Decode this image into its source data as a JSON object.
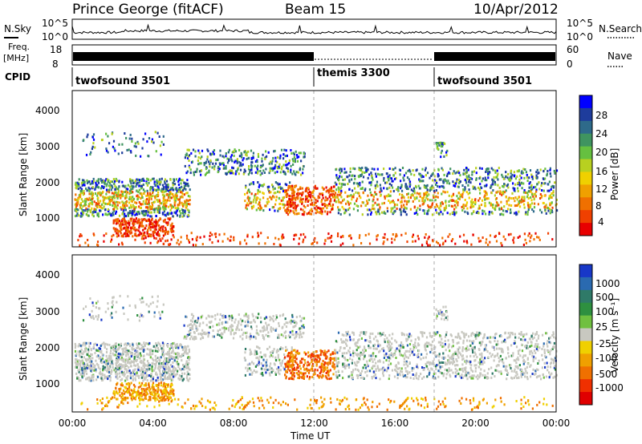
{
  "header": {
    "station": "Prince George (fitACF)",
    "beam": "Beam 15",
    "date": "10/Apr/2012"
  },
  "left_labels": {
    "nsky": "N.Sky",
    "freq_line1": "Freq.",
    "freq_line2": "[MHz]",
    "cpid": "CPID"
  },
  "right_labels": {
    "nsearch": "N.Search",
    "nave": "Nave"
  },
  "small_panel_ticks": {
    "nsky_left": [
      "10^5",
      "10^0"
    ],
    "nsky_right": [
      "10^5",
      "10^0"
    ],
    "freq_left": [
      "18",
      "8"
    ],
    "nave_right": [
      "60",
      "0"
    ]
  },
  "cpid_segments": [
    {
      "label": "twofsound 3501",
      "start_h": 0,
      "end_h": 12
    },
    {
      "label": "themis 3300",
      "start_h": 12,
      "end_h": 18
    },
    {
      "label": "twofsound 3501",
      "start_h": 18,
      "end_h": 24
    }
  ],
  "chart_data": [
    {
      "type": "heatmap",
      "name": "Power",
      "ylabel": "Slant Range [km]",
      "xlabel": "Time UT",
      "xlim_hours": [
        0,
        24
      ],
      "ylim": [
        180,
        4500
      ],
      "x_ticks": [
        "00:00",
        "04:00",
        "08:00",
        "12:00",
        "16:00",
        "20:00",
        "00:00"
      ],
      "y_ticks": [
        1000,
        2000,
        3000,
        4000
      ],
      "colorbar_label": "Power [dB]",
      "colorbar_ticks": [
        "28",
        "24",
        "20",
        "16",
        "12",
        "8",
        "4"
      ],
      "colorbar_colors": [
        "#0000ff",
        "#1e3c9c",
        "#2e6a8a",
        "#3f9460",
        "#66c040",
        "#b8d020",
        "#f0d000",
        "#f0a000",
        "#f07000",
        "#f04000",
        "#e80000"
      ],
      "vertical_markers_h": [
        12,
        18
      ]
    },
    {
      "type": "heatmap",
      "name": "Velocity",
      "ylabel": "Slant Range [km]",
      "xlabel": "Time UT",
      "xlim_hours": [
        0,
        24
      ],
      "ylim": [
        180,
        4500
      ],
      "x_ticks": [
        "00:00",
        "04:00",
        "08:00",
        "12:00",
        "16:00",
        "20:00",
        "00:00"
      ],
      "y_ticks": [
        1000,
        2000,
        3000,
        4000
      ],
      "colorbar_label": "Velocity [m s⁻¹]",
      "colorbar_ticks": [
        "1000",
        "500",
        "100",
        "25",
        "-25",
        "-100",
        "-500",
        "-1000"
      ],
      "colorbar_colors": [
        "#1838c8",
        "#2a6ab0",
        "#2f7a68",
        "#2e9040",
        "#70c040",
        "#c8c8c0",
        "#f0d000",
        "#f0a000",
        "#f07000",
        "#f03000",
        "#e00000"
      ],
      "vertical_markers_h": [
        12,
        18
      ]
    }
  ]
}
